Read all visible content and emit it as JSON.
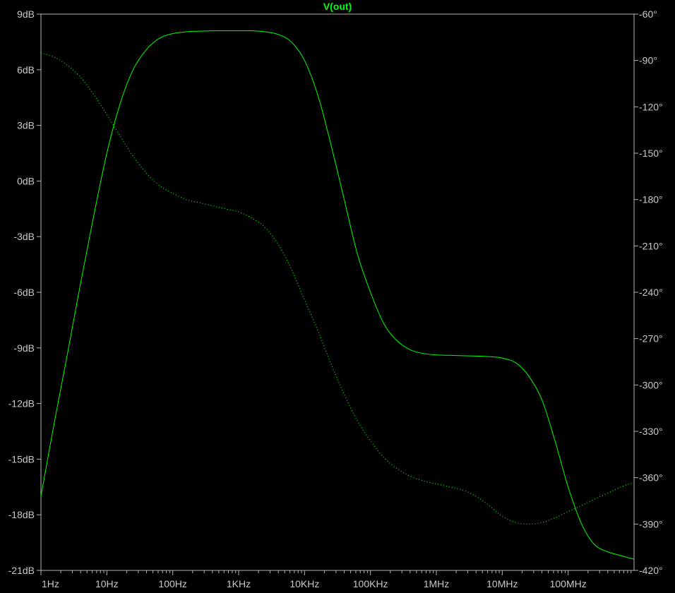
{
  "chart_data": {
    "type": "line",
    "title": "V(out)",
    "x_scale": "log",
    "xlim": [
      1,
      1000000000
    ],
    "x_ticks": [
      {
        "value": 1,
        "label": "1Hz"
      },
      {
        "value": 10,
        "label": "10Hz"
      },
      {
        "value": 100,
        "label": "100Hz"
      },
      {
        "value": 1000,
        "label": "1KHz"
      },
      {
        "value": 10000,
        "label": "10KHz"
      },
      {
        "value": 100000,
        "label": "100KHz"
      },
      {
        "value": 1000000,
        "label": "1MHz"
      },
      {
        "value": 10000000,
        "label": "10MHz"
      },
      {
        "value": 100000000,
        "label": "100MHz"
      }
    ],
    "y_left": {
      "range": [
        -21,
        9
      ],
      "ticks": [
        {
          "value": 9,
          "label": "9dB"
        },
        {
          "value": 6,
          "label": "6dB"
        },
        {
          "value": 3,
          "label": "3dB"
        },
        {
          "value": 0,
          "label": "0dB"
        },
        {
          "value": -3,
          "label": "-3dB"
        },
        {
          "value": -6,
          "label": "-6dB"
        },
        {
          "value": -9,
          "label": "-9dB"
        },
        {
          "value": -12,
          "label": "-12dB"
        },
        {
          "value": -15,
          "label": "-15dB"
        },
        {
          "value": -18,
          "label": "-18dB"
        },
        {
          "value": -21,
          "label": "-21dB"
        }
      ]
    },
    "y_right": {
      "range": [
        -420,
        -60
      ],
      "ticks": [
        {
          "value": -60,
          "label": "-60°"
        },
        {
          "value": -90,
          "label": "-90°"
        },
        {
          "value": -120,
          "label": "-120°"
        },
        {
          "value": -150,
          "label": "-150°"
        },
        {
          "value": -180,
          "label": "-180°"
        },
        {
          "value": -210,
          "label": "-210°"
        },
        {
          "value": -240,
          "label": "-240°"
        },
        {
          "value": -270,
          "label": "-270°"
        },
        {
          "value": -300,
          "label": "-300°"
        },
        {
          "value": -330,
          "label": "-330°"
        },
        {
          "value": -360,
          "label": "-360°"
        },
        {
          "value": -390,
          "label": "-390°"
        },
        {
          "value": -420,
          "label": "-420°"
        }
      ]
    },
    "grid": false,
    "background": "#000000",
    "frame_color": "#b4b4b4",
    "trace_color": "#00ff00",
    "series": [
      {
        "axis": "left",
        "style": "solid",
        "x": [
          1,
          1.6,
          2.5,
          4,
          6.3,
          10,
          16,
          25,
          40,
          63,
          100,
          160,
          250,
          400,
          630,
          1000,
          1600,
          2500,
          4000,
          6300,
          10000,
          16000,
          25000,
          40000,
          63000,
          100000,
          160000,
          250000,
          400000,
          630000,
          1000000,
          1600000,
          2500000,
          4000000,
          6300000,
          10000000,
          16000000,
          25000000,
          40000000,
          63000000,
          100000000,
          160000000,
          250000000,
          400000000,
          630000000,
          1000000000
        ],
        "values": [
          -17,
          -13,
          -9.4,
          -5.5,
          -1.9,
          1.5,
          4.2,
          6.0,
          7.1,
          7.7,
          7.95,
          8.05,
          8.08,
          8.1,
          8.1,
          8.1,
          8.1,
          8.05,
          7.9,
          7.5,
          6.5,
          4.6,
          2.0,
          -1.0,
          -3.9,
          -6.0,
          -7.7,
          -8.6,
          -9.1,
          -9.3,
          -9.38,
          -9.4,
          -9.42,
          -9.44,
          -9.47,
          -9.55,
          -9.8,
          -10.5,
          -11.8,
          -14.0,
          -16.5,
          -18.5,
          -19.6,
          -20.0,
          -20.2,
          -20.4
        ]
      },
      {
        "axis": "right",
        "style": "dotted",
        "x": [
          1,
          1.6,
          2.5,
          4,
          6.3,
          10,
          16,
          25,
          40,
          63,
          100,
          160,
          250,
          400,
          630,
          1000,
          1600,
          2500,
          4000,
          6300,
          10000,
          16000,
          25000,
          40000,
          63000,
          100000,
          160000,
          250000,
          400000,
          630000,
          1000000,
          1600000,
          2500000,
          4000000,
          6300000,
          10000000,
          16000000,
          25000000,
          40000000,
          63000000,
          100000000,
          160000000,
          250000000,
          400000000,
          630000000,
          1000000000
        ],
        "values": [
          -85,
          -88,
          -93,
          -101,
          -112,
          -125,
          -139,
          -152,
          -163,
          -171,
          -176,
          -180,
          -182,
          -184,
          -186,
          -188,
          -192,
          -198,
          -209,
          -225,
          -245,
          -265,
          -286,
          -306,
          -323,
          -336,
          -347,
          -354,
          -359,
          -362,
          -364,
          -366,
          -368,
          -372,
          -378,
          -385,
          -389,
          -390,
          -389,
          -386,
          -382,
          -378,
          -374,
          -370,
          -366,
          -363
        ]
      }
    ]
  }
}
